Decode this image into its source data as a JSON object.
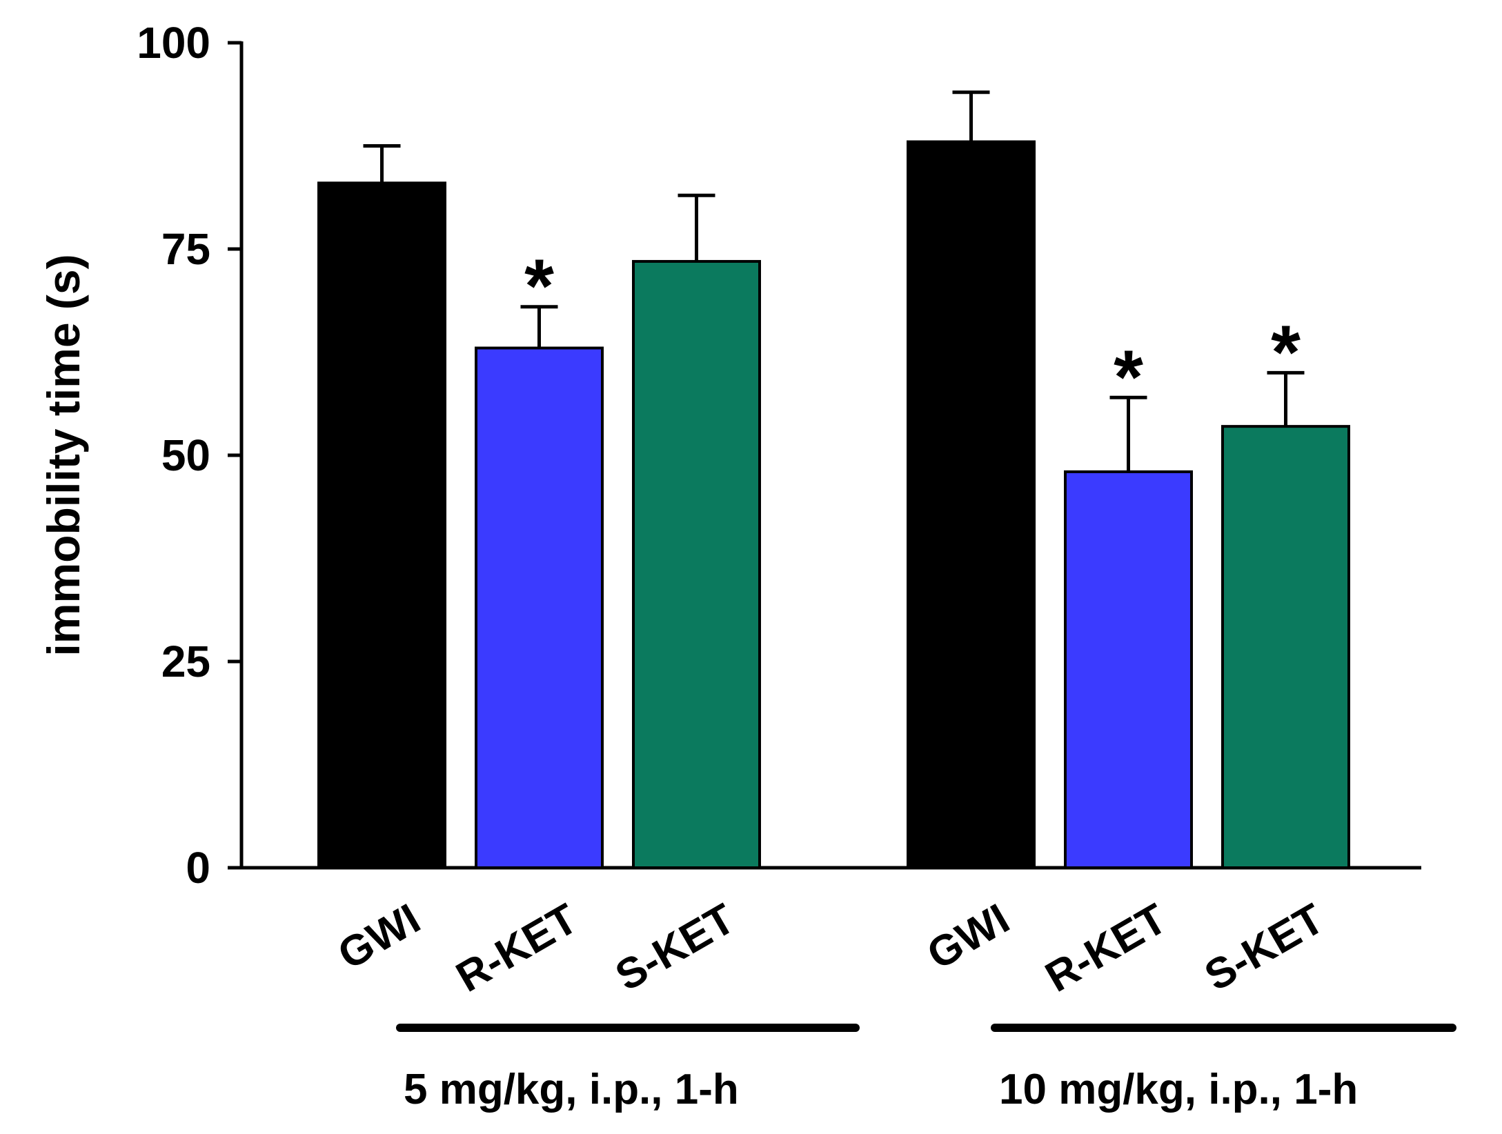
{
  "chart_data": {
    "type": "bar",
    "title": "",
    "xlabel": "",
    "ylabel": "immobility time (s)",
    "ylim": [
      0,
      100
    ],
    "yticks": [
      0,
      25,
      50,
      75,
      100
    ],
    "grid": false,
    "colors": {
      "GWI": "#000000",
      "R-KET": "#3b3bff",
      "S-KET": "#0b7a5e"
    },
    "bars": [
      {
        "category": "GWI",
        "group": 0,
        "value": 83,
        "error": 4.5,
        "significant": false
      },
      {
        "category": "R-KET",
        "group": 0,
        "value": 63,
        "error": 5,
        "significant": true
      },
      {
        "category": "S-KET",
        "group": 0,
        "value": 73.5,
        "error": 8,
        "significant": false
      },
      {
        "category": "GWI",
        "group": 1,
        "value": 88,
        "error": 6,
        "significant": false
      },
      {
        "category": "R-KET",
        "group": 1,
        "value": 48,
        "error": 9,
        "significant": true
      },
      {
        "category": "S-KET",
        "group": 1,
        "value": 53.5,
        "error": 6.5,
        "significant": true
      }
    ],
    "groups": [
      {
        "label": "5 mg/kg, i.p., 1-h"
      },
      {
        "label": "10 mg/kg, i.p., 1-h"
      }
    ],
    "significance_marker": "*"
  }
}
